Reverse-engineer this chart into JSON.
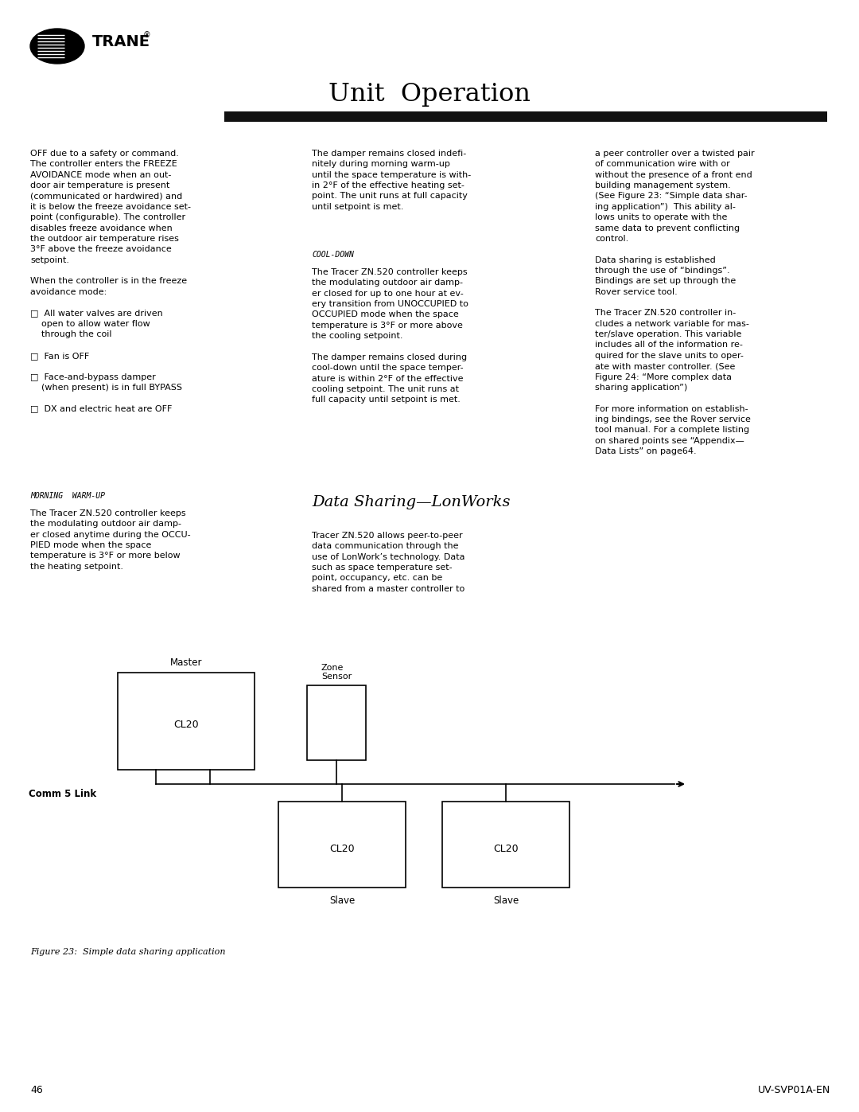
{
  "page_title": "Unit  Operation",
  "background_color": "#ffffff",
  "header_bar_color": "#111111",
  "page_number": "46",
  "doc_id": "UV-SVP01A-EN",
  "figure_caption": "Figure 23:  Simple data sharing application",
  "col2_section_title": "Data Sharing—LonWorks",
  "morning_warmup_label": "MORNING  WARM-UP",
  "col2_heading": "COOL-DOWN",
  "col1_main": "OFF due to a safety or command.\nThe controller enters the FREEZE\nAVOIDANCE mode when an out-\ndoor air temperature is present\n(communicated or hardwired) and\nit is below the freeze avoidance set-\npoint (configurable). The controller\ndisables freeze avoidance when\nthe outdoor air temperature rises\n3°F above the freeze avoidance\nsetpoint.\n\nWhen the controller is in the freeze\navoidance mode:\n\n□  All water valves are driven\n    open to allow water flow\n    through the coil\n\n□  Fan is OFF\n\n□  Face-and-bypass damper\n    (when present) is in full BYPASS\n\n□  DX and electric heat are OFF",
  "col1_warmup": "The Tracer ZN.520 controller keeps\nthe modulating outdoor air damp-\ner closed anytime during the OCCU-\nPIED mode when the space\ntemperature is 3°F or more below\nthe heating setpoint.",
  "col2_top": "The damper remains closed indefi-\nnitely during morning warm-up\nuntil the space temperature is with-\nin 2°F of the effective heating set-\npoint. The unit runs at full capacity\nuntil setpoint is met.",
  "col2_cooldown": "The Tracer ZN.520 controller keeps\nthe modulating outdoor air damp-\ner closed for up to one hour at ev-\nery transition from UNOCCUPIED to\nOCCUPIED mode when the space\ntemperature is 3°F or more above\nthe cooling setpoint.\n\nThe damper remains closed during\ncool-down until the space temper-\nature is within 2°F of the effective\ncooling setpoint. The unit runs at\nfull capacity until setpoint is met.",
  "col2_ds_body": "Tracer ZN.520 allows peer-to-peer\ndata communication through the\nuse of LonWork’s technology. Data\nsuch as space temperature set-\npoint, occupancy, etc. can be\nshared from a master controller to",
  "col3_text": "a peer controller over a twisted pair\nof communication wire with or\nwithout the presence of a front end\nbuilding management system.\n(See Figure 23: “Simple data shar-\ning application”)  This ability al-\nlows units to operate with the\nsame data to prevent conflicting\ncontrol.\n\nData sharing is established\nthrough the use of “bindings”.\nBindings are set up through the\nRover service tool.\n\nThe Tracer ZN.520 controller in-\ncludes a network variable for mas-\nter/slave operation. This variable\nincludes all of the information re-\nquired for the slave units to oper-\nate with master controller. (See\nFigure 24: “More complex data\nsharing application”)\n\nFor more information on establish-\ning bindings, see the Rover service\ntool manual. For a complete listing\non shared points see “Appendix—\nData Lists” on page64."
}
